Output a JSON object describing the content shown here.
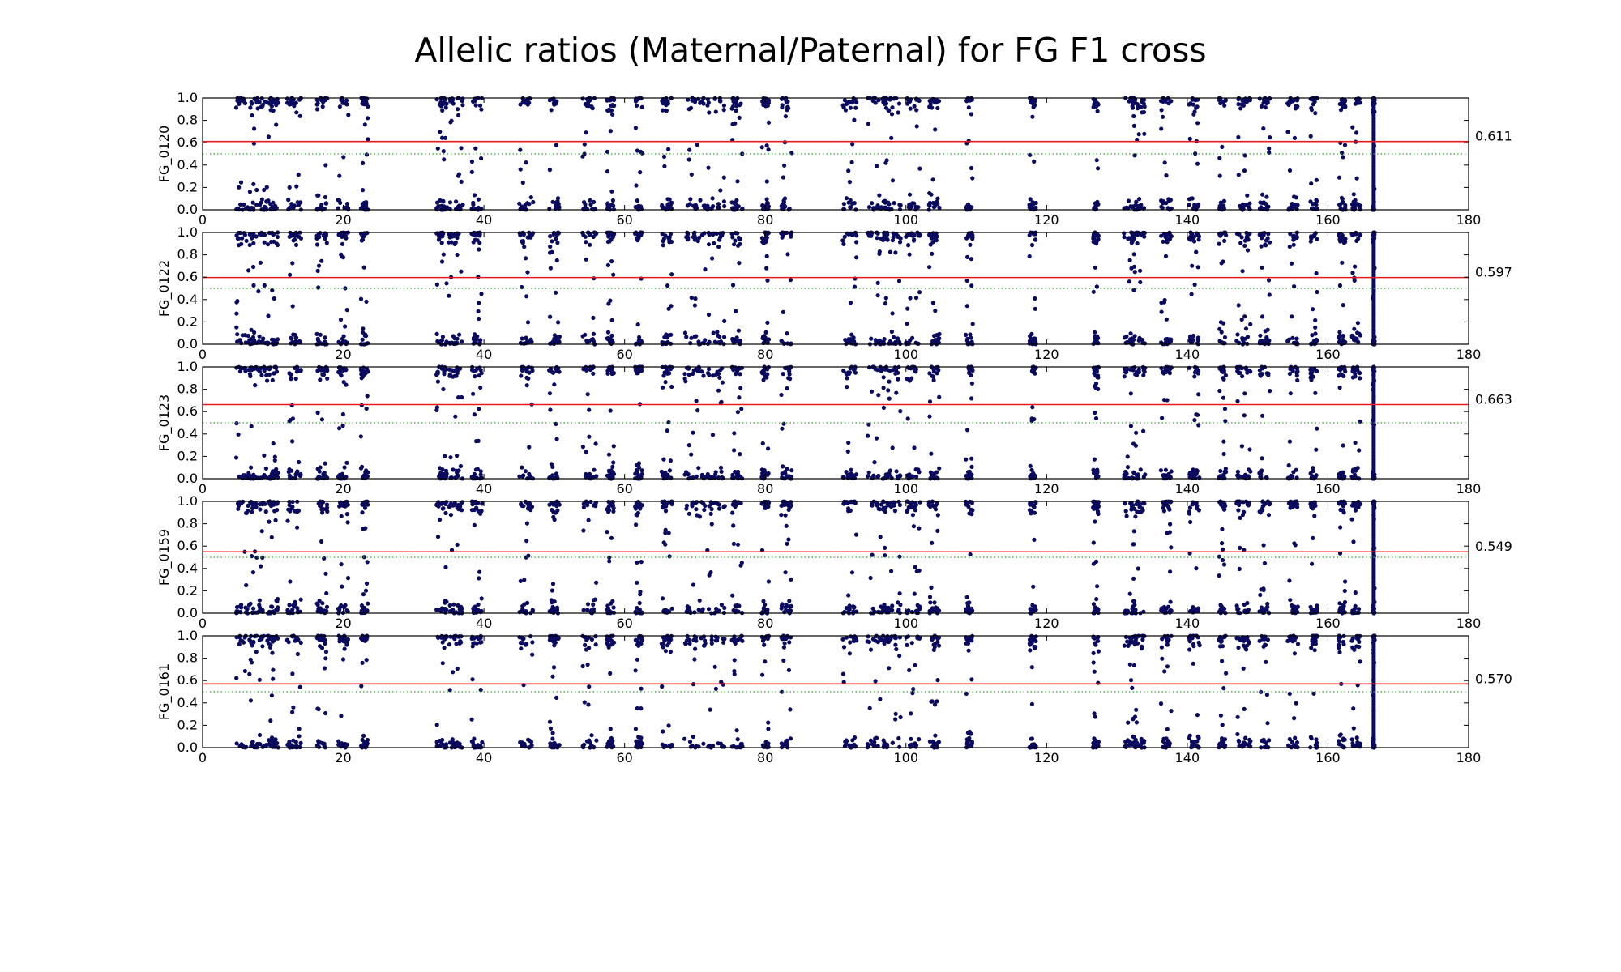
{
  "title": "Allelic ratios (Maternal/Paternal) for FG F1 cross",
  "colors": {
    "points": "#0a0a5e",
    "mean_line": "#e41a1c",
    "half_line": "#2ca02c"
  },
  "chart_data": [
    {
      "type": "scatter",
      "title": "",
      "ylabel": "FG_0120",
      "xlim": [
        0,
        180
      ],
      "ylim": [
        0.0,
        1.0
      ],
      "xticks": [
        0,
        20,
        40,
        60,
        80,
        100,
        120,
        140,
        160,
        180
      ],
      "yticks": [
        0.0,
        0.2,
        0.4,
        0.6,
        0.8,
        1.0
      ],
      "xtick_labels": [
        "0",
        "20",
        "40",
        "60",
        "80",
        "100",
        "120",
        "140",
        "160",
        "180"
      ],
      "ytick_labels": [
        "0.0",
        "0.2",
        "0.4",
        "0.6",
        "0.8",
        "1.0"
      ],
      "mean_line": 0.611,
      "mean_label": "0.611",
      "reference_line": 0.5,
      "grid": false,
      "point_clusters": [
        [
          6,
          2.5
        ],
        [
          8,
          2.5
        ],
        [
          10,
          1.5
        ],
        [
          13,
          2
        ],
        [
          17,
          1.5
        ],
        [
          20,
          1.5
        ],
        [
          23,
          1
        ],
        [
          34,
          1.5
        ],
        [
          36,
          2
        ],
        [
          39,
          1.5
        ],
        [
          46,
          2
        ],
        [
          50,
          1.5
        ],
        [
          55,
          2
        ],
        [
          58,
          1
        ],
        [
          62,
          1
        ],
        [
          66,
          1.5
        ],
        [
          70,
          3
        ],
        [
          73,
          2.5
        ],
        [
          76,
          1.5
        ],
        [
          80,
          1
        ],
        [
          83,
          1.5
        ],
        [
          92,
          2
        ],
        [
          96,
          3
        ],
        [
          98,
          2.5
        ],
        [
          101,
          2
        ],
        [
          104,
          1.5
        ],
        [
          109,
          1
        ],
        [
          118,
          1
        ],
        [
          127,
          0.8
        ],
        [
          132,
          2
        ],
        [
          133,
          2
        ],
        [
          137,
          1.5
        ],
        [
          141,
          1.5
        ],
        [
          145,
          1
        ],
        [
          148,
          2
        ],
        [
          151,
          1.5
        ],
        [
          155,
          1.5
        ],
        [
          158,
          1
        ],
        [
          162,
          1
        ],
        [
          164,
          1.2
        ],
        [
          166.5,
          0.3
        ]
      ]
    },
    {
      "type": "scatter",
      "title": "",
      "ylabel": "FG_0122",
      "xlim": [
        0,
        180
      ],
      "ylim": [
        0.0,
        1.0
      ],
      "xticks": [
        0,
        20,
        40,
        60,
        80,
        100,
        120,
        140,
        160,
        180
      ],
      "yticks": [
        0.0,
        0.2,
        0.4,
        0.6,
        0.8,
        1.0
      ],
      "xtick_labels": [
        "0",
        "20",
        "40",
        "60",
        "80",
        "100",
        "120",
        "140",
        "160",
        "180"
      ],
      "ytick_labels": [
        "0.0",
        "0.2",
        "0.4",
        "0.6",
        "0.8",
        "1.0"
      ],
      "mean_line": 0.597,
      "mean_label": "0.597",
      "reference_line": 0.5,
      "grid": false,
      "point_clusters": [
        [
          6,
          2.5
        ],
        [
          8,
          2.5
        ],
        [
          10,
          1.5
        ],
        [
          13,
          2
        ],
        [
          17,
          1.5
        ],
        [
          20,
          1.5
        ],
        [
          23,
          1
        ],
        [
          34,
          1.5
        ],
        [
          36,
          2
        ],
        [
          39,
          1.5
        ],
        [
          46,
          2
        ],
        [
          50,
          1.5
        ],
        [
          55,
          2
        ],
        [
          58,
          1
        ],
        [
          62,
          1
        ],
        [
          66,
          1.5
        ],
        [
          70,
          3
        ],
        [
          73,
          2.5
        ],
        [
          76,
          1.5
        ],
        [
          80,
          1
        ],
        [
          83,
          1.5
        ],
        [
          92,
          2
        ],
        [
          96,
          3
        ],
        [
          98,
          2.5
        ],
        [
          101,
          2
        ],
        [
          104,
          1.5
        ],
        [
          109,
          1
        ],
        [
          118,
          1
        ],
        [
          127,
          0.8
        ],
        [
          132,
          2
        ],
        [
          133,
          2
        ],
        [
          137,
          1.5
        ],
        [
          141,
          1.5
        ],
        [
          145,
          1
        ],
        [
          148,
          2
        ],
        [
          151,
          1.5
        ],
        [
          155,
          1.5
        ],
        [
          158,
          1
        ],
        [
          162,
          1
        ],
        [
          164,
          1.2
        ],
        [
          166.5,
          0.3
        ]
      ]
    },
    {
      "type": "scatter",
      "title": "",
      "ylabel": "FG_0123",
      "xlim": [
        0,
        180
      ],
      "ylim": [
        0.0,
        1.0
      ],
      "xticks": [
        0,
        20,
        40,
        60,
        80,
        100,
        120,
        140,
        160,
        180
      ],
      "yticks": [
        0.0,
        0.2,
        0.4,
        0.6,
        0.8,
        1.0
      ],
      "xtick_labels": [
        "0",
        "20",
        "40",
        "60",
        "80",
        "100",
        "120",
        "140",
        "160",
        "180"
      ],
      "ytick_labels": [
        "0.0",
        "0.2",
        "0.4",
        "0.6",
        "0.8",
        "1.0"
      ],
      "mean_line": 0.663,
      "mean_label": "0.663",
      "reference_line": 0.5,
      "grid": false,
      "point_clusters": [
        [
          6,
          2.5
        ],
        [
          8,
          2.5
        ],
        [
          10,
          1.5
        ],
        [
          13,
          2
        ],
        [
          17,
          1.5
        ],
        [
          20,
          1.5
        ],
        [
          23,
          1
        ],
        [
          34,
          1.5
        ],
        [
          36,
          2
        ],
        [
          39,
          1.5
        ],
        [
          46,
          2
        ],
        [
          50,
          1.5
        ],
        [
          55,
          2
        ],
        [
          58,
          1
        ],
        [
          62,
          1
        ],
        [
          66,
          1.5
        ],
        [
          70,
          3
        ],
        [
          73,
          2.5
        ],
        [
          76,
          1.5
        ],
        [
          80,
          1
        ],
        [
          83,
          1.5
        ],
        [
          92,
          2
        ],
        [
          96,
          3
        ],
        [
          98,
          2.5
        ],
        [
          101,
          2
        ],
        [
          104,
          1.5
        ],
        [
          109,
          1
        ],
        [
          118,
          1
        ],
        [
          127,
          0.8
        ],
        [
          132,
          2
        ],
        [
          133,
          2
        ],
        [
          137,
          1.5
        ],
        [
          141,
          1.5
        ],
        [
          145,
          1
        ],
        [
          148,
          2
        ],
        [
          151,
          1.5
        ],
        [
          155,
          1.5
        ],
        [
          158,
          1
        ],
        [
          162,
          1
        ],
        [
          164,
          1.2
        ],
        [
          166.5,
          0.3
        ]
      ]
    },
    {
      "type": "scatter",
      "title": "",
      "ylabel": "FG_0159",
      "xlim": [
        0,
        180
      ],
      "ylim": [
        0.0,
        1.0
      ],
      "xticks": [
        0,
        20,
        40,
        60,
        80,
        100,
        120,
        140,
        160,
        180
      ],
      "yticks": [
        0.0,
        0.2,
        0.4,
        0.6,
        0.8,
        1.0
      ],
      "xtick_labels": [
        "0",
        "20",
        "40",
        "60",
        "80",
        "100",
        "120",
        "140",
        "160",
        "180"
      ],
      "ytick_labels": [
        "0.0",
        "0.2",
        "0.4",
        "0.6",
        "0.8",
        "1.0"
      ],
      "mean_line": 0.549,
      "mean_label": "0.549",
      "reference_line": 0.5,
      "grid": false,
      "point_clusters": [
        [
          6,
          2.5
        ],
        [
          8,
          2.5
        ],
        [
          10,
          1.5
        ],
        [
          13,
          2
        ],
        [
          17,
          1.5
        ],
        [
          20,
          1.5
        ],
        [
          23,
          1
        ],
        [
          34,
          1.5
        ],
        [
          36,
          2
        ],
        [
          39,
          1.5
        ],
        [
          46,
          2
        ],
        [
          50,
          1.5
        ],
        [
          55,
          2
        ],
        [
          58,
          1
        ],
        [
          62,
          1
        ],
        [
          66,
          1.5
        ],
        [
          70,
          3
        ],
        [
          73,
          2.5
        ],
        [
          76,
          1.5
        ],
        [
          80,
          1
        ],
        [
          83,
          1.5
        ],
        [
          92,
          2
        ],
        [
          96,
          3
        ],
        [
          98,
          2.5
        ],
        [
          101,
          2
        ],
        [
          104,
          1.5
        ],
        [
          109,
          1
        ],
        [
          118,
          1
        ],
        [
          127,
          0.8
        ],
        [
          132,
          2
        ],
        [
          133,
          2
        ],
        [
          137,
          1.5
        ],
        [
          141,
          1.5
        ],
        [
          145,
          1
        ],
        [
          148,
          2
        ],
        [
          151,
          1.5
        ],
        [
          155,
          1.5
        ],
        [
          158,
          1
        ],
        [
          162,
          1
        ],
        [
          164,
          1.2
        ],
        [
          166.5,
          0.3
        ]
      ]
    },
    {
      "type": "scatter",
      "title": "",
      "ylabel": "FG_0161",
      "xlim": [
        0,
        180
      ],
      "ylim": [
        0.0,
        1.0
      ],
      "xticks": [
        0,
        20,
        40,
        60,
        80,
        100,
        120,
        140,
        160,
        180
      ],
      "yticks": [
        0.0,
        0.2,
        0.4,
        0.6,
        0.8,
        1.0
      ],
      "xtick_labels": [
        "0",
        "20",
        "40",
        "60",
        "80",
        "100",
        "120",
        "140",
        "160",
        "180"
      ],
      "ytick_labels": [
        "0.0",
        "0.2",
        "0.4",
        "0.6",
        "0.8",
        "1.0"
      ],
      "mean_line": 0.57,
      "mean_label": "0.570",
      "reference_line": 0.5,
      "grid": false,
      "point_clusters": [
        [
          6,
          2.5
        ],
        [
          8,
          2.5
        ],
        [
          10,
          1.5
        ],
        [
          13,
          2
        ],
        [
          17,
          1.5
        ],
        [
          20,
          1.5
        ],
        [
          23,
          1
        ],
        [
          34,
          1.5
        ],
        [
          36,
          2
        ],
        [
          39,
          1.5
        ],
        [
          46,
          2
        ],
        [
          50,
          1.5
        ],
        [
          55,
          2
        ],
        [
          58,
          1
        ],
        [
          62,
          1
        ],
        [
          66,
          1.5
        ],
        [
          70,
          3
        ],
        [
          73,
          2.5
        ],
        [
          76,
          1.5
        ],
        [
          80,
          1
        ],
        [
          83,
          1.5
        ],
        [
          92,
          2
        ],
        [
          96,
          3
        ],
        [
          98,
          2.5
        ],
        [
          101,
          2
        ],
        [
          104,
          1.5
        ],
        [
          109,
          1
        ],
        [
          118,
          1
        ],
        [
          127,
          0.8
        ],
        [
          132,
          2
        ],
        [
          133,
          2
        ],
        [
          137,
          1.5
        ],
        [
          141,
          1.5
        ],
        [
          145,
          1
        ],
        [
          148,
          2
        ],
        [
          151,
          1.5
        ],
        [
          155,
          1.5
        ],
        [
          158,
          1
        ],
        [
          162,
          1
        ],
        [
          164,
          1.2
        ],
        [
          166.5,
          0.3
        ]
      ]
    }
  ]
}
